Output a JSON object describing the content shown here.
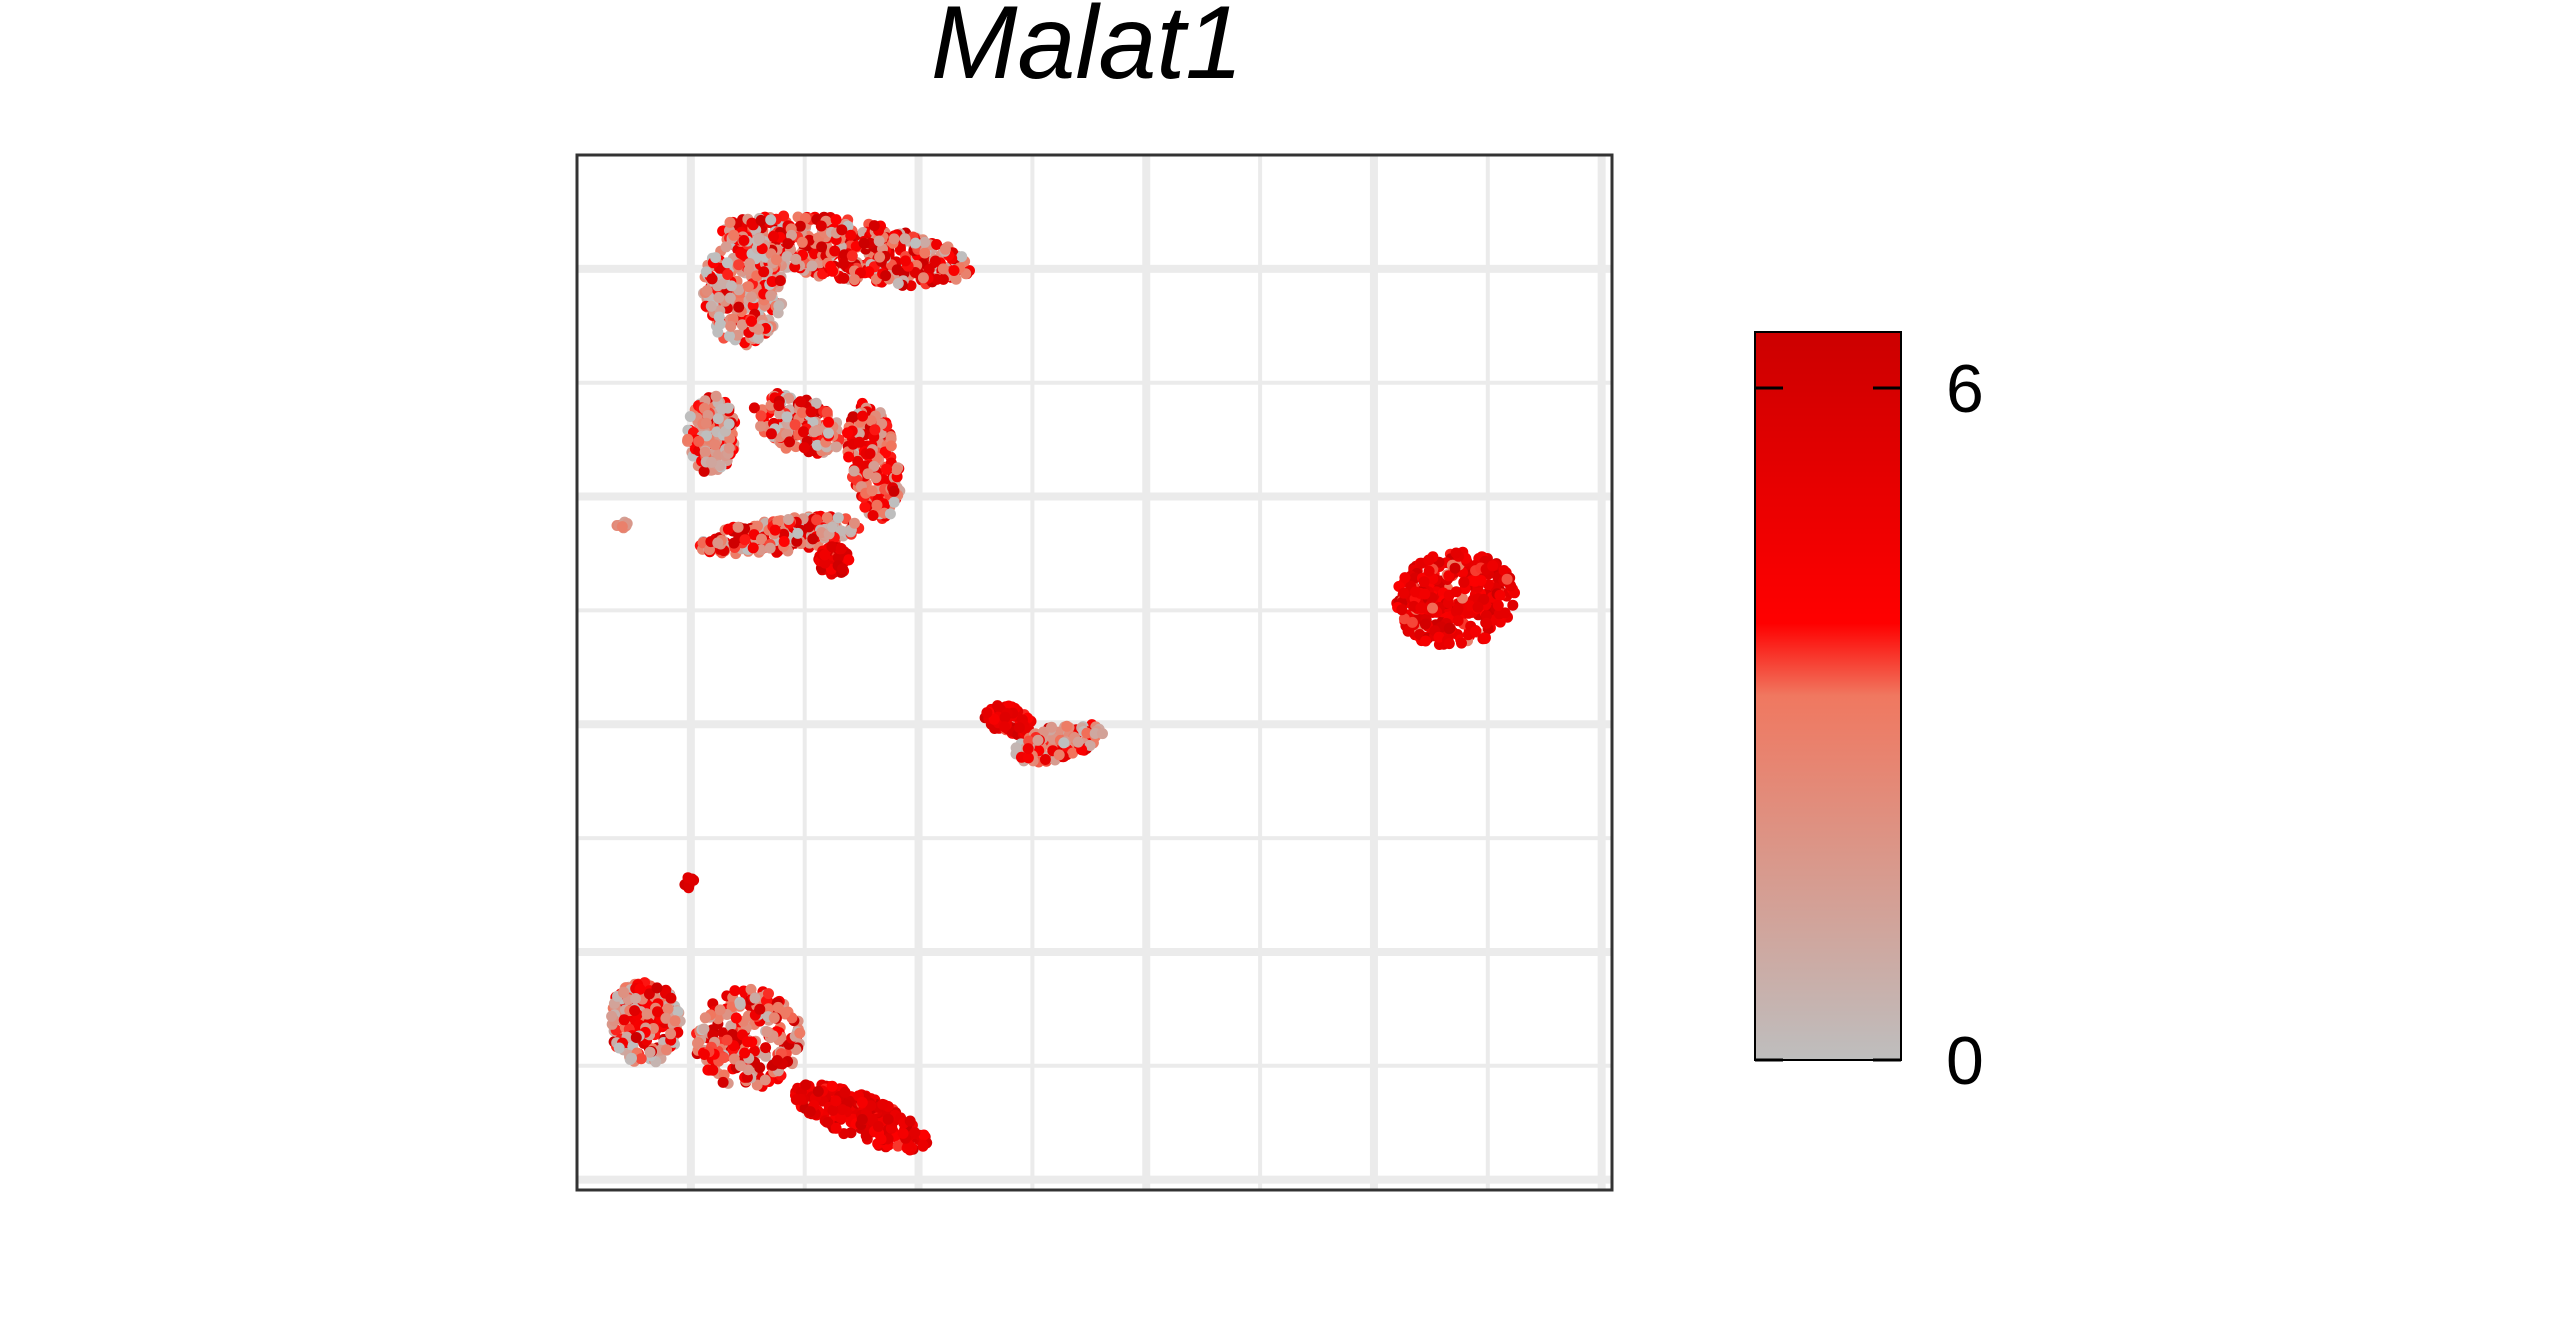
{
  "chart_data": {
    "type": "scatter",
    "title": "Malat1",
    "xlabel": "",
    "ylabel": "",
    "grid": true,
    "axis_ticks_shown": false,
    "legend_placement": "right",
    "colorbar": {
      "min": 0,
      "max": 6.5,
      "ticks": [
        {
          "value": 6,
          "label": "6"
        },
        {
          "value": 0,
          "label": "0"
        }
      ],
      "colors": [
        {
          "at": 0.0,
          "color": "#bebebe"
        },
        {
          "at": 0.5,
          "color": "#f07860"
        },
        {
          "at": 0.6,
          "color": "#ff0000"
        },
        {
          "at": 1.0,
          "color": "#cc0000"
        }
      ]
    },
    "xlim": [
      -10.5,
      12.5
    ],
    "ylim": [
      -10.5,
      8.0
    ],
    "clusters": [
      {
        "id": "top-arm",
        "cx": -4.5,
        "cy": 6.3,
        "rx": 2.8,
        "ry": 0.55,
        "rot": -0.12,
        "n": 520,
        "expr_mean": 3.6,
        "expr_sd": 1.9
      },
      {
        "id": "top-left-stem",
        "cx": -6.8,
        "cy": 5.6,
        "rx": 0.9,
        "ry": 1.0,
        "rot": 0,
        "n": 260,
        "expr_mean": 2.2,
        "expr_sd": 2.0
      },
      {
        "id": "left-ring-upper",
        "cx": -7.5,
        "cy": 3.0,
        "rx": 0.55,
        "ry": 0.7,
        "rot": 0,
        "n": 140,
        "expr_mean": 2.0,
        "expr_sd": 1.9
      },
      {
        "id": "ring-middle",
        "cx": -5.6,
        "cy": 3.2,
        "rx": 1.0,
        "ry": 0.5,
        "rot": -0.3,
        "n": 150,
        "expr_mean": 2.8,
        "expr_sd": 2.0
      },
      {
        "id": "ring-right",
        "cx": -3.9,
        "cy": 2.5,
        "rx": 0.55,
        "ry": 1.1,
        "rot": 0.25,
        "n": 190,
        "expr_mean": 3.5,
        "expr_sd": 1.6
      },
      {
        "id": "ring-bottom",
        "cx": -6.0,
        "cy": 1.2,
        "rx": 1.8,
        "ry": 0.3,
        "rot": 0.1,
        "n": 220,
        "expr_mean": 3.4,
        "expr_sd": 2.0
      },
      {
        "id": "ring-knob",
        "cx": -4.8,
        "cy": 0.75,
        "rx": 0.35,
        "ry": 0.25,
        "rot": 0,
        "n": 60,
        "expr_mean": 5.0,
        "expr_sd": 0.8
      },
      {
        "id": "far-left-dot",
        "cx": -9.5,
        "cy": 1.4,
        "rx": 0.12,
        "ry": 0.08,
        "rot": 0,
        "n": 8,
        "expr_mean": 2.0,
        "expr_sd": 0.6
      },
      {
        "id": "right-blob",
        "cx": 9.0,
        "cy": 0.05,
        "rx": 1.35,
        "ry": 0.85,
        "rot": 0.1,
        "n": 330,
        "expr_mean": 5.0,
        "expr_sd": 0.9
      },
      {
        "id": "center-head",
        "cx": -0.9,
        "cy": -2.1,
        "rx": 0.55,
        "ry": 0.25,
        "rot": -0.2,
        "n": 60,
        "expr_mean": 5.1,
        "expr_sd": 0.8
      },
      {
        "id": "center-tail",
        "cx": 0.2,
        "cy": -2.5,
        "rx": 1.0,
        "ry": 0.3,
        "rot": 0.2,
        "n": 130,
        "expr_mean": 2.8,
        "expr_sd": 1.6
      },
      {
        "id": "tiny-dot",
        "cx": -8.0,
        "cy": -5.0,
        "rx": 0.12,
        "ry": 0.1,
        "rot": 0,
        "n": 8,
        "expr_mean": 5.5,
        "expr_sd": 0.5
      },
      {
        "id": "bottom-left",
        "cx": -9.0,
        "cy": -7.5,
        "rx": 0.8,
        "ry": 0.75,
        "rot": 0,
        "n": 210,
        "expr_mean": 3.0,
        "expr_sd": 2.1
      },
      {
        "id": "bottom-mid",
        "cx": -6.7,
        "cy": -7.8,
        "rx": 1.2,
        "ry": 0.9,
        "rot": 0,
        "n": 240,
        "expr_mean": 3.6,
        "expr_sd": 1.9
      },
      {
        "id": "bottom-right-tail",
        "cx": -4.2,
        "cy": -9.2,
        "rx": 1.55,
        "ry": 0.4,
        "rot": -0.3,
        "n": 240,
        "expr_mean": 5.1,
        "expr_sd": 0.8
      }
    ]
  }
}
